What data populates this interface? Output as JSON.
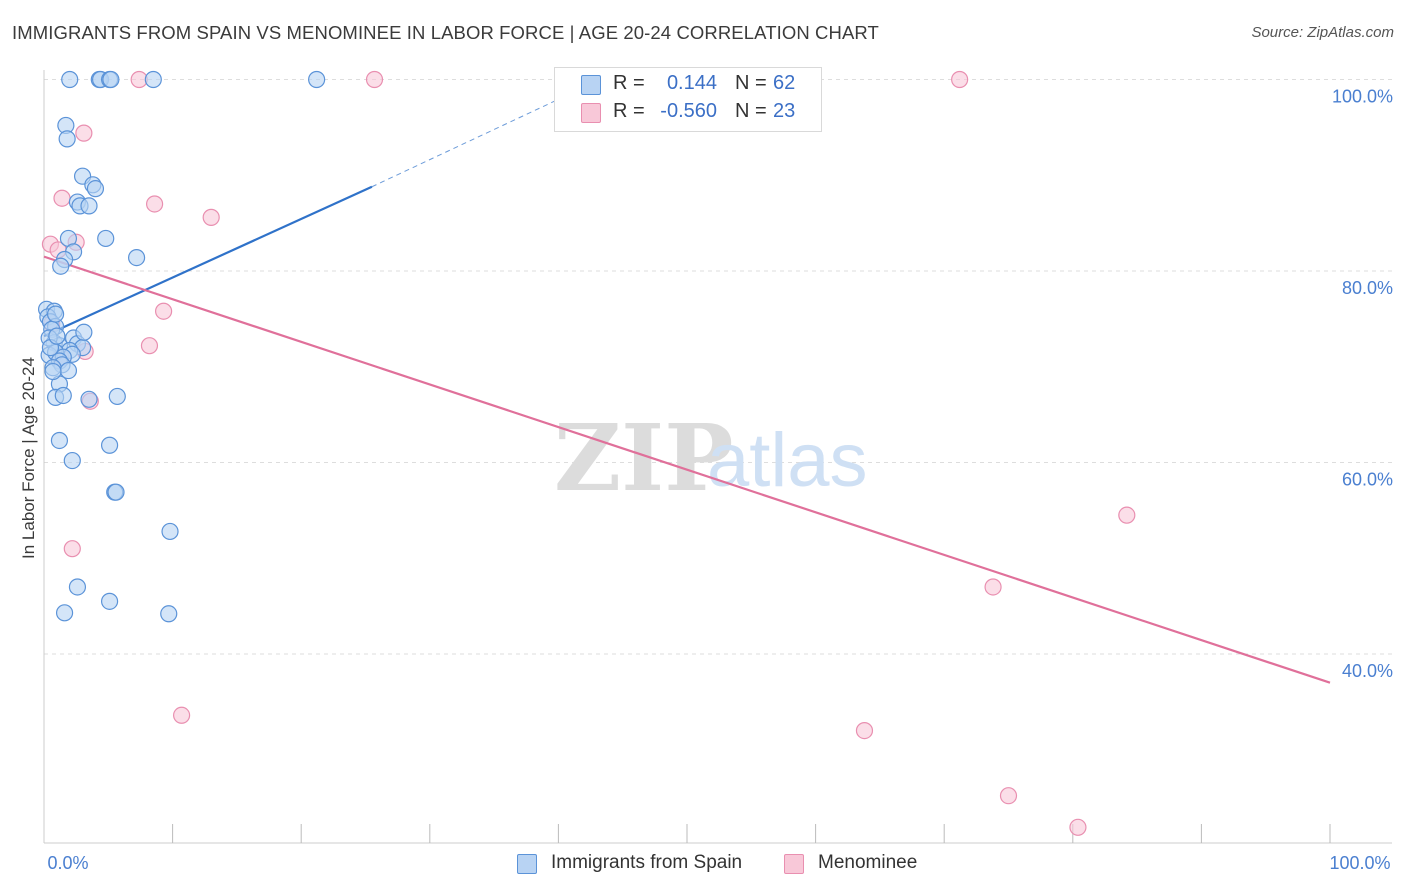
{
  "header": {
    "title": "IMMIGRANTS FROM SPAIN VS MENOMINEE IN LABOR FORCE | AGE 20-24 CORRELATION CHART",
    "source": "Source: ZipAtlas.com"
  },
  "watermark": {
    "zip": "ZIP",
    "atlas": "atlas"
  },
  "colors": {
    "blue_fill": "#b8d3f3",
    "blue_stroke": "#5b93d8",
    "blue_line": "#2f72c9",
    "pink_fill": "#f8c8d8",
    "pink_stroke": "#e98fb0",
    "pink_line": "#e0709a",
    "grid": "#dddddd",
    "tick_text": "#4a7fd0"
  },
  "stats": {
    "rows": [
      {
        "r_label": "R =",
        "r_value": "0.144",
        "n_label": "N =",
        "n_value": "62"
      },
      {
        "r_label": "R =",
        "r_value": "-0.560",
        "n_label": "N =",
        "n_value": "23"
      }
    ]
  },
  "legend": {
    "items": [
      {
        "label": "Immigrants from Spain"
      },
      {
        "label": "Menominee"
      }
    ]
  },
  "chart_data": {
    "type": "scatter",
    "title": "IMMIGRANTS FROM SPAIN VS MENOMINEE IN LABOR FORCE | AGE 20-24 CORRELATION CHART",
    "xlabel": "",
    "ylabel": "In Labor Force | Age 20-24",
    "xlim": [
      0,
      100
    ],
    "ylim": [
      20,
      103
    ],
    "x_tick_labels": [
      {
        "value": 0,
        "label": "0.0%"
      },
      {
        "value": 100,
        "label": "100.0%"
      }
    ],
    "y_tick_labels": [
      {
        "value": 40,
        "label": "40.0%"
      },
      {
        "value": 60,
        "label": "60.0%"
      },
      {
        "value": 80,
        "label": "80.0%"
      },
      {
        "value": 100,
        "label": "100.0%"
      }
    ],
    "y_gridlines": [
      40,
      60,
      80,
      100
    ],
    "legend_position": "bottom",
    "series": [
      {
        "name": "Immigrants from Spain",
        "r": 0.144,
        "n": 62,
        "trend": {
          "x_start": 0,
          "y_start": 73.2,
          "x_solid_end": 25.5,
          "y_solid_end": 88.8,
          "x_dashed_end": 42.5,
          "y_dashed_end": 99.5
        },
        "points": [
          [
            2.0,
            100
          ],
          [
            4.3,
            100
          ],
          [
            4.4,
            100
          ],
          [
            5.1,
            100
          ],
          [
            5.2,
            100
          ],
          [
            8.5,
            100
          ],
          [
            21.2,
            100
          ],
          [
            1.7,
            95.2
          ],
          [
            1.8,
            93.8
          ],
          [
            3.0,
            89.9
          ],
          [
            3.8,
            89.0
          ],
          [
            4.0,
            88.6
          ],
          [
            2.6,
            87.2
          ],
          [
            2.8,
            86.8
          ],
          [
            3.5,
            86.8
          ],
          [
            1.9,
            83.4
          ],
          [
            4.8,
            83.4
          ],
          [
            2.3,
            82.0
          ],
          [
            7.2,
            81.4
          ],
          [
            1.6,
            81.2
          ],
          [
            1.3,
            80.5
          ],
          [
            0.2,
            76.0
          ],
          [
            0.8,
            75.8
          ],
          [
            0.3,
            75.2
          ],
          [
            0.5,
            74.7
          ],
          [
            0.9,
            74.2
          ],
          [
            0.6,
            73.9
          ],
          [
            2.3,
            73.0
          ],
          [
            0.8,
            72.5
          ],
          [
            1.2,
            72.2
          ],
          [
            2.6,
            72.4
          ],
          [
            3.0,
            72.0
          ],
          [
            2.0,
            71.7
          ],
          [
            2.2,
            71.3
          ],
          [
            0.4,
            71.2
          ],
          [
            0.9,
            71.5
          ],
          [
            1.5,
            71.0
          ],
          [
            1.2,
            70.6
          ],
          [
            1.4,
            70.2
          ],
          [
            0.7,
            69.9
          ],
          [
            1.9,
            69.6
          ],
          [
            1.2,
            68.2
          ],
          [
            0.7,
            69.5
          ],
          [
            0.9,
            66.8
          ],
          [
            1.5,
            67.0
          ],
          [
            3.5,
            66.6
          ],
          [
            5.7,
            66.9
          ],
          [
            1.2,
            62.3
          ],
          [
            5.1,
            61.8
          ],
          [
            2.2,
            60.2
          ],
          [
            5.5,
            56.9
          ],
          [
            5.6,
            56.9
          ],
          [
            9.8,
            52.8
          ],
          [
            2.6,
            47.0
          ],
          [
            5.1,
            45.5
          ],
          [
            1.6,
            44.3
          ],
          [
            9.7,
            44.2
          ],
          [
            0.4,
            73.0
          ],
          [
            0.5,
            72.0
          ],
          [
            0.9,
            75.5
          ],
          [
            1.0,
            73.2
          ],
          [
            3.1,
            73.6
          ]
        ]
      },
      {
        "name": "Menominee",
        "r": -0.56,
        "n": 23,
        "trend": {
          "x_start": 0,
          "y_start": 81.5,
          "x_end": 100,
          "y_end": 37.0
        },
        "points": [
          [
            7.4,
            100
          ],
          [
            25.7,
            100
          ],
          [
            71.2,
            100
          ],
          [
            3.1,
            94.4
          ],
          [
            1.4,
            87.6
          ],
          [
            8.6,
            87.0
          ],
          [
            13.0,
            85.6
          ],
          [
            0.5,
            82.8
          ],
          [
            2.5,
            83.0
          ],
          [
            1.1,
            82.2
          ],
          [
            9.3,
            75.8
          ],
          [
            0.6,
            74.5
          ],
          [
            8.2,
            72.2
          ],
          [
            3.2,
            71.6
          ],
          [
            3.6,
            66.4
          ],
          [
            2.2,
            51.0
          ],
          [
            84.2,
            54.5
          ],
          [
            73.8,
            47.0
          ],
          [
            10.7,
            33.6
          ],
          [
            63.8,
            32.0
          ],
          [
            75.0,
            25.2
          ],
          [
            80.4,
            21.9
          ],
          [
            1.3,
            71.0
          ]
        ]
      }
    ]
  }
}
